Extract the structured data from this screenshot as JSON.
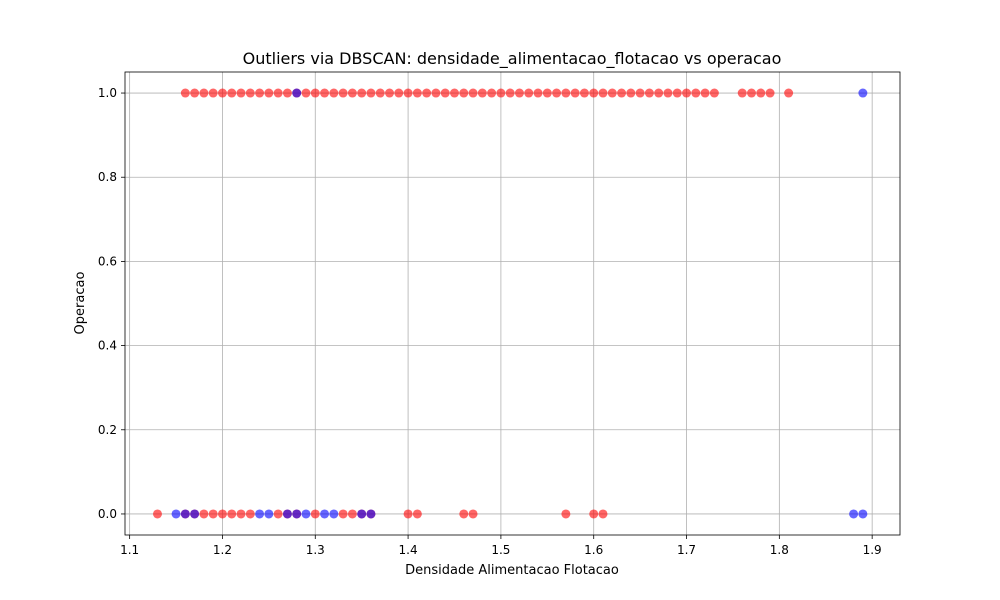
{
  "chart_data": {
    "type": "scatter",
    "title": "Outliers via DBSCAN: densidade_alimentacao_flotacao vs operacao",
    "xlabel": "Densidade Alimentacao Flotacao",
    "ylabel": "Operacao",
    "xlim": [
      1.095,
      1.93
    ],
    "ylim": [
      -0.05,
      1.05
    ],
    "xticks": [
      "1.1",
      "1.2",
      "1.3",
      "1.4",
      "1.5",
      "1.6",
      "1.7",
      "1.8",
      "1.9"
    ],
    "yticks": [
      "0.0",
      "0.2",
      "0.4",
      "0.6",
      "0.8",
      "1.0"
    ],
    "grid": true,
    "colors": {
      "outlier": "#ff0000",
      "inlier": "#0000ff"
    },
    "series": [
      {
        "color": "red",
        "points": [
          [
            1.16,
            1
          ],
          [
            1.17,
            1
          ],
          [
            1.18,
            1
          ],
          [
            1.19,
            1
          ],
          [
            1.2,
            1
          ],
          [
            1.21,
            1
          ],
          [
            1.22,
            1
          ],
          [
            1.23,
            1
          ],
          [
            1.24,
            1
          ],
          [
            1.25,
            1
          ],
          [
            1.26,
            1
          ],
          [
            1.27,
            1
          ],
          [
            1.28,
            1
          ],
          [
            1.29,
            1
          ],
          [
            1.3,
            1
          ],
          [
            1.31,
            1
          ],
          [
            1.32,
            1
          ],
          [
            1.33,
            1
          ],
          [
            1.34,
            1
          ],
          [
            1.35,
            1
          ],
          [
            1.36,
            1
          ],
          [
            1.37,
            1
          ],
          [
            1.38,
            1
          ],
          [
            1.39,
            1
          ],
          [
            1.4,
            1
          ],
          [
            1.41,
            1
          ],
          [
            1.42,
            1
          ],
          [
            1.43,
            1
          ],
          [
            1.44,
            1
          ],
          [
            1.45,
            1
          ],
          [
            1.46,
            1
          ],
          [
            1.47,
            1
          ],
          [
            1.48,
            1
          ],
          [
            1.49,
            1
          ],
          [
            1.5,
            1
          ],
          [
            1.51,
            1
          ],
          [
            1.52,
            1
          ],
          [
            1.53,
            1
          ],
          [
            1.54,
            1
          ],
          [
            1.55,
            1
          ],
          [
            1.56,
            1
          ],
          [
            1.57,
            1
          ],
          [
            1.58,
            1
          ],
          [
            1.59,
            1
          ],
          [
            1.6,
            1
          ],
          [
            1.61,
            1
          ],
          [
            1.62,
            1
          ],
          [
            1.63,
            1
          ],
          [
            1.64,
            1
          ],
          [
            1.65,
            1
          ],
          [
            1.66,
            1
          ],
          [
            1.67,
            1
          ],
          [
            1.68,
            1
          ],
          [
            1.69,
            1
          ],
          [
            1.7,
            1
          ],
          [
            1.71,
            1
          ],
          [
            1.72,
            1
          ],
          [
            1.73,
            1
          ],
          [
            1.76,
            1
          ],
          [
            1.77,
            1
          ],
          [
            1.78,
            1
          ],
          [
            1.79,
            1
          ],
          [
            1.81,
            1
          ],
          [
            1.13,
            0
          ],
          [
            1.16,
            0
          ],
          [
            1.17,
            0
          ],
          [
            1.18,
            0
          ],
          [
            1.19,
            0
          ],
          [
            1.2,
            0
          ],
          [
            1.21,
            0
          ],
          [
            1.22,
            0
          ],
          [
            1.23,
            0
          ],
          [
            1.26,
            0
          ],
          [
            1.27,
            0
          ],
          [
            1.28,
            0
          ],
          [
            1.3,
            0
          ],
          [
            1.33,
            0
          ],
          [
            1.34,
            0
          ],
          [
            1.35,
            0
          ],
          [
            1.36,
            0
          ],
          [
            1.4,
            0
          ],
          [
            1.41,
            0
          ],
          [
            1.46,
            0
          ],
          [
            1.47,
            0
          ],
          [
            1.57,
            0
          ],
          [
            1.6,
            0
          ],
          [
            1.61,
            0
          ]
        ]
      },
      {
        "color": "blue",
        "points": [
          [
            1.28,
            1
          ],
          [
            1.89,
            1
          ],
          [
            1.15,
            0
          ],
          [
            1.16,
            0
          ],
          [
            1.17,
            0
          ],
          [
            1.24,
            0
          ],
          [
            1.25,
            0
          ],
          [
            1.27,
            0
          ],
          [
            1.28,
            0
          ],
          [
            1.29,
            0
          ],
          [
            1.31,
            0
          ],
          [
            1.32,
            0
          ],
          [
            1.35,
            0
          ],
          [
            1.36,
            0
          ],
          [
            1.88,
            0
          ],
          [
            1.89,
            0
          ]
        ]
      }
    ]
  }
}
